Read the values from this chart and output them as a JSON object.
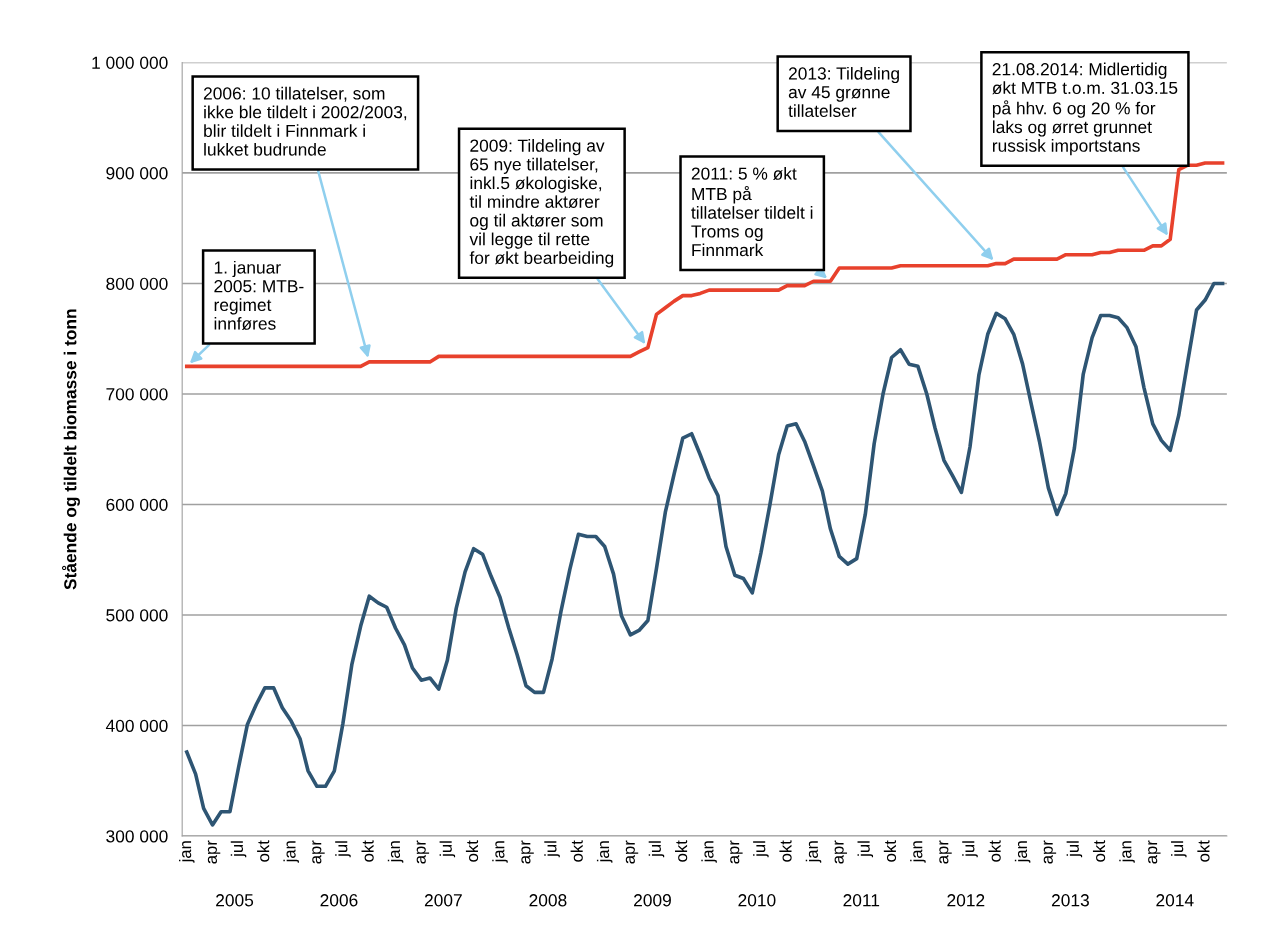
{
  "chart_data": {
    "type": "line",
    "ylabel": "Stående og tildelt biomasse i tonn",
    "x": [
      "2005-01",
      "2005-02",
      "2005-03",
      "2005-04",
      "2005-05",
      "2005-06",
      "2005-07",
      "2005-08",
      "2005-09",
      "2005-10",
      "2005-11",
      "2005-12",
      "2006-01",
      "2006-02",
      "2006-03",
      "2006-04",
      "2006-05",
      "2006-06",
      "2006-07",
      "2006-08",
      "2006-09",
      "2006-10",
      "2006-11",
      "2006-12",
      "2007-01",
      "2007-02",
      "2007-03",
      "2007-04",
      "2007-05",
      "2007-06",
      "2007-07",
      "2007-08",
      "2007-09",
      "2007-10",
      "2007-11",
      "2007-12",
      "2008-01",
      "2008-02",
      "2008-03",
      "2008-04",
      "2008-05",
      "2008-06",
      "2008-07",
      "2008-08",
      "2008-09",
      "2008-10",
      "2008-11",
      "2008-12",
      "2009-01",
      "2009-02",
      "2009-03",
      "2009-04",
      "2009-05",
      "2009-06",
      "2009-07",
      "2009-08",
      "2009-09",
      "2009-10",
      "2009-11",
      "2009-12",
      "2010-01",
      "2010-02",
      "2010-03",
      "2010-04",
      "2010-05",
      "2010-06",
      "2010-07",
      "2010-08",
      "2010-09",
      "2010-10",
      "2010-11",
      "2010-12",
      "2011-01",
      "2011-02",
      "2011-03",
      "2011-04",
      "2011-05",
      "2011-06",
      "2011-07",
      "2011-08",
      "2011-09",
      "2011-10",
      "2011-11",
      "2011-12",
      "2012-01",
      "2012-02",
      "2012-03",
      "2012-04",
      "2012-05",
      "2012-06",
      "2012-07",
      "2012-08",
      "2012-09",
      "2012-10",
      "2012-11",
      "2012-12",
      "2013-01",
      "2013-02",
      "2013-03",
      "2013-04",
      "2013-05",
      "2013-06",
      "2013-07",
      "2013-08",
      "2013-09",
      "2013-10",
      "2013-11",
      "2013-12",
      "2014-01",
      "2014-02",
      "2014-03",
      "2014-04",
      "2014-05",
      "2014-06",
      "2014-07",
      "2014-08",
      "2014-09",
      "2014-10",
      "2014-11",
      "2014-12"
    ],
    "series": [
      {
        "color": "#2e5573",
        "values": [
          376000,
          356000,
          325000,
          310000,
          322000,
          322000,
          362000,
          401000,
          419000,
          434000,
          434000,
          416000,
          404000,
          388000,
          359000,
          345000,
          345000,
          359000,
          402000,
          455000,
          490000,
          517000,
          511000,
          507000,
          488000,
          473000,
          452000,
          441000,
          443000,
          433000,
          459000,
          506000,
          539000,
          560000,
          555000,
          535000,
          516000,
          488000,
          464000,
          436000,
          430000,
          430000,
          460000,
          503000,
          541000,
          573000,
          571000,
          571000,
          562000,
          537000,
          499000,
          482000,
          486000,
          495000,
          542000,
          593000,
          628000,
          660000,
          664000,
          645000,
          624000,
          608000,
          562000,
          536000,
          533000,
          520000,
          556000,
          599000,
          645000,
          671000,
          673000,
          657000,
          635000,
          612000,
          578000,
          553000,
          546000,
          551000,
          591000,
          655000,
          700000,
          733000,
          740000,
          727000,
          725000,
          700000,
          669000,
          640000,
          626000,
          611000,
          652000,
          717000,
          754000,
          773000,
          768000,
          754000,
          727000,
          690000,
          657000,
          615000,
          591000,
          610000,
          651000,
          718000,
          751000,
          771000,
          771000,
          769000,
          760000,
          743000,
          706000,
          673000,
          658000,
          649000,
          681000,
          729000,
          776000,
          785000,
          800000,
          800000
        ]
      },
      {
        "color": "#e8412c",
        "values": [
          725000,
          725000,
          725000,
          725000,
          725000,
          725000,
          725000,
          725000,
          725000,
          725000,
          725000,
          725000,
          725000,
          725000,
          725000,
          725000,
          725000,
          725000,
          725000,
          725000,
          725000,
          729000,
          729000,
          729000,
          729000,
          729000,
          729000,
          729000,
          729000,
          734000,
          734000,
          734000,
          734000,
          734000,
          734000,
          734000,
          734000,
          734000,
          734000,
          734000,
          734000,
          734000,
          734000,
          734000,
          734000,
          734000,
          734000,
          734000,
          734000,
          734000,
          734000,
          734000,
          738000,
          742000,
          772000,
          778000,
          784000,
          789000,
          789000,
          791000,
          794000,
          794000,
          794000,
          794000,
          794000,
          794000,
          794000,
          794000,
          794000,
          798000,
          798000,
          798000,
          802000,
          802000,
          802000,
          814000,
          814000,
          814000,
          814000,
          814000,
          814000,
          814000,
          816000,
          816000,
          816000,
          816000,
          816000,
          816000,
          816000,
          816000,
          816000,
          816000,
          816000,
          818000,
          818000,
          822000,
          822000,
          822000,
          822000,
          822000,
          822000,
          826000,
          826000,
          826000,
          826000,
          828000,
          828000,
          830000,
          830000,
          830000,
          830000,
          834000,
          834000,
          840000,
          903000,
          907000,
          907000,
          909000,
          909000,
          909000
        ]
      }
    ],
    "xlim": [
      "2004-12-16",
      "2014-12-16"
    ],
    "xticks": [
      {
        "value": "2005-01",
        "label": "jan"
      },
      {
        "value": "2005-04",
        "label": "apr"
      },
      {
        "value": "2005-07",
        "label": "jul"
      },
      {
        "value": "2005-10",
        "label": "okt"
      },
      {
        "value": "2006-01",
        "label": "jan"
      },
      {
        "value": "2006-04",
        "label": "apr"
      },
      {
        "value": "2006-07",
        "label": "jul"
      },
      {
        "value": "2006-10",
        "label": "okt"
      },
      {
        "value": "2007-01",
        "label": "jan"
      },
      {
        "value": "2007-04",
        "label": "apr"
      },
      {
        "value": "2007-07",
        "label": "jul"
      },
      {
        "value": "2007-10",
        "label": "okt"
      },
      {
        "value": "2008-01",
        "label": "jan"
      },
      {
        "value": "2008-04",
        "label": "apr"
      },
      {
        "value": "2008-07",
        "label": "jul"
      },
      {
        "value": "2008-10",
        "label": "okt"
      },
      {
        "value": "2009-01",
        "label": "jan"
      },
      {
        "value": "2009-04",
        "label": "apr"
      },
      {
        "value": "2009-07",
        "label": "jul"
      },
      {
        "value": "2009-10",
        "label": "okt"
      },
      {
        "value": "2010-01",
        "label": "jan"
      },
      {
        "value": "2010-04",
        "label": "apr"
      },
      {
        "value": "2010-07",
        "label": "jul"
      },
      {
        "value": "2010-10",
        "label": "okt"
      },
      {
        "value": "2011-01",
        "label": "jan"
      },
      {
        "value": "2011-04",
        "label": "apr"
      },
      {
        "value": "2011-07",
        "label": "jul"
      },
      {
        "value": "2011-10",
        "label": "okt"
      },
      {
        "value": "2012-01",
        "label": "jan"
      },
      {
        "value": "2012-04",
        "label": "apr"
      },
      {
        "value": "2012-07",
        "label": "jul"
      },
      {
        "value": "2012-10",
        "label": "okt"
      },
      {
        "value": "2013-01",
        "label": "jan"
      },
      {
        "value": "2013-04",
        "label": "apr"
      },
      {
        "value": "2013-07",
        "label": "jul"
      },
      {
        "value": "2013-10",
        "label": "okt"
      },
      {
        "value": "2014-01",
        "label": "jan"
      },
      {
        "value": "2014-04",
        "label": "apr"
      },
      {
        "value": "2014-07",
        "label": "jul"
      },
      {
        "value": "2014-10",
        "label": "okt"
      }
    ],
    "ylim": [
      300000,
      1000000
    ],
    "yticks": [
      {
        "value": 300000,
        "label": "300 000"
      },
      {
        "value": 400000,
        "label": "400 000"
      },
      {
        "value": 500000,
        "label": "500 000"
      },
      {
        "value": 600000,
        "label": "600 000"
      },
      {
        "value": 700000,
        "label": "700 000"
      },
      {
        "value": 800000,
        "label": "800 000"
      },
      {
        "value": 900000,
        "label": "900 000"
      },
      {
        "value": 1000000,
        "label": "1 000 000"
      }
    ],
    "grid": "y",
    "legend": false,
    "marker": "none",
    "line_style": "solid",
    "annotations": [
      {
        "text": "1. januar\n2005: MTB-\nregimet\ninnføres",
        "x": "2005-01",
        "y": 725000
      },
      {
        "text": "2006: 10 tillatelser, som\nikke ble tildelt i 2002/2003,\nblir tildelt i Finnmark i\nlukket budrunde",
        "x": "2006-10",
        "y": 729000
      },
      {
        "text": "2009: Tildeling av\n65 nye tillatelser,\ninkl.5 økologiske,\ntil mindre aktører\nog til aktører som\nvil legge til rette\nfor økt bearbeiding",
        "x": "2009-06",
        "y": 742000
      },
      {
        "text": "2011: 5 % økt\nMTB på\ntillatelser tildelt i\nTroms og\nFinnmark",
        "x": "2011-03",
        "y": 802000
      },
      {
        "text": "2013: Tildeling\nav 45 grønne\ntillatelser",
        "x": "2012-10",
        "y": 818000
      },
      {
        "text": "21.08.2014: Midlertidig\nøkt MTB t.o.m. 31.03.15\npå hhv. 6 og 20 % for\nlaks og ørret grunnet\nrussisk importstans",
        "x": "2014-06",
        "y": 840000
      },
      "2005",
      "2006",
      "2007",
      "2008",
      "2009",
      "2010",
      "2011",
      "2012",
      "2013",
      "2014"
    ]
  }
}
